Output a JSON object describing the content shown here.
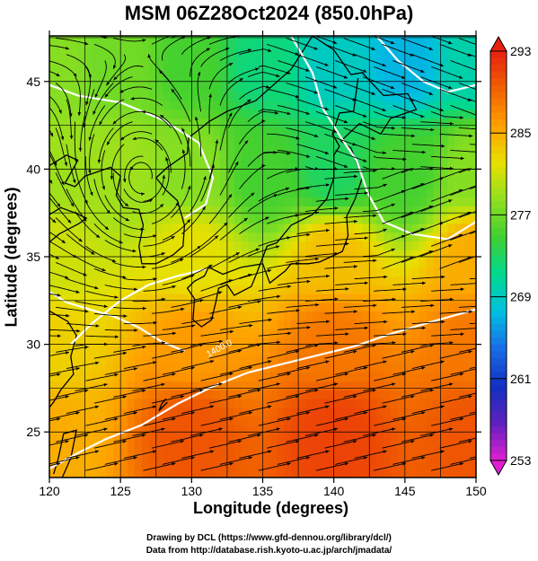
{
  "title": "MSM 06Z28Oct2024 (850.0hPa)",
  "xlabel": "Longitude (degrees)",
  "ylabel": "Latitude  (degrees)",
  "credits": [
    "Drawing by DCL (https://www.gfd-dennou.org/library/dcl/)",
    "Data from http://database.rish.kyoto-u.ac.jp/arch/jmadata/"
  ],
  "contour_label": "1400.0",
  "chart_data": {
    "type": "heatmap",
    "title": "MSM 06Z28Oct2024 (850.0hPa)",
    "xlabel": "Longitude (degrees)",
    "ylabel": "Latitude  (degrees)",
    "xlim": [
      120,
      150
    ],
    "ylim": [
      22.4,
      47.6
    ],
    "xticks": [
      120,
      125,
      130,
      135,
      140,
      145,
      150
    ],
    "yticks": [
      25,
      30,
      35,
      40,
      45
    ],
    "grid": true,
    "colorbar": {
      "ticks": [
        293,
        285,
        277,
        269,
        261,
        253
      ],
      "range": [
        253,
        293
      ],
      "colors": [
        "#e020d0",
        "#6020c0",
        "#1030c0",
        "#1a6ce8",
        "#00c0e0",
        "#00d890",
        "#40d030",
        "#90e020",
        "#e8e000",
        "#ffa000",
        "#f06000",
        "#e82010"
      ]
    },
    "temperature_samples": [
      {
        "lon": 120,
        "lat": 46,
        "value": 278
      },
      {
        "lon": 125,
        "lat": 46,
        "value": 277
      },
      {
        "lon": 130,
        "lat": 46,
        "value": 275
      },
      {
        "lon": 135,
        "lat": 46,
        "value": 272
      },
      {
        "lon": 140,
        "lat": 46,
        "value": 269
      },
      {
        "lon": 145,
        "lat": 46,
        "value": 267
      },
      {
        "lon": 150,
        "lat": 46,
        "value": 270
      },
      {
        "lon": 120,
        "lat": 40,
        "value": 279
      },
      {
        "lon": 125,
        "lat": 40,
        "value": 279
      },
      {
        "lon": 130,
        "lat": 40,
        "value": 278
      },
      {
        "lon": 135,
        "lat": 40,
        "value": 275
      },
      {
        "lon": 140,
        "lat": 40,
        "value": 273
      },
      {
        "lon": 145,
        "lat": 40,
        "value": 275
      },
      {
        "lon": 150,
        "lat": 40,
        "value": 278
      },
      {
        "lon": 120,
        "lat": 35,
        "value": 281
      },
      {
        "lon": 130,
        "lat": 35,
        "value": 282
      },
      {
        "lon": 140,
        "lat": 35,
        "value": 284
      },
      {
        "lon": 150,
        "lat": 35,
        "value": 285
      },
      {
        "lon": 120,
        "lat": 30,
        "value": 283
      },
      {
        "lon": 130,
        "lat": 30,
        "value": 286
      },
      {
        "lon": 140,
        "lat": 30,
        "value": 288
      },
      {
        "lon": 150,
        "lat": 30,
        "value": 288
      },
      {
        "lon": 120,
        "lat": 25,
        "value": 285
      },
      {
        "lon": 130,
        "lat": 25,
        "value": 290
      },
      {
        "lon": 140,
        "lat": 25,
        "value": 291
      },
      {
        "lon": 150,
        "lat": 25,
        "value": 290
      }
    ]
  }
}
